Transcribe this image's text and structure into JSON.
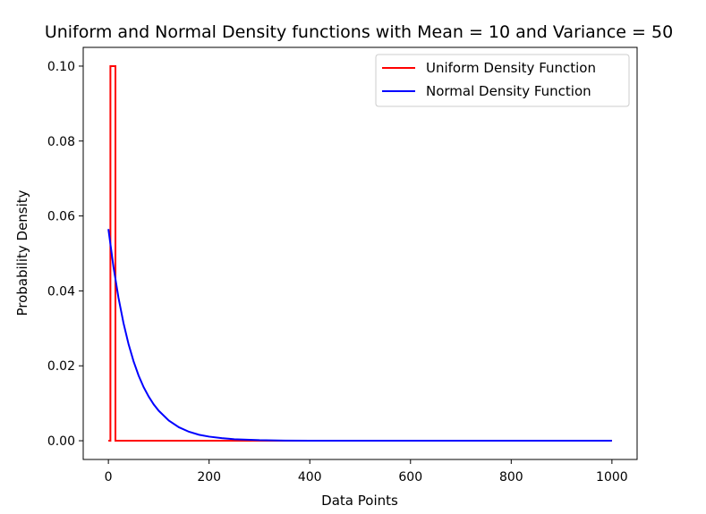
{
  "chart_data": {
    "type": "line",
    "title": "Uniform and Normal Density functions with Mean = 10 and Variance = 50",
    "xlabel": "Data Points",
    "ylabel": "Probability Density",
    "xlim": [
      -50,
      1050
    ],
    "ylim": [
      -0.005,
      0.105
    ],
    "xticks": [
      0,
      200,
      400,
      600,
      800,
      1000
    ],
    "yticks": [
      0.0,
      0.02,
      0.04,
      0.06,
      0.08,
      0.1
    ],
    "xtick_labels": [
      "0",
      "200",
      "400",
      "600",
      "800",
      "1000"
    ],
    "ytick_labels": [
      "0.00",
      "0.02",
      "0.04",
      "0.06",
      "0.08",
      "0.10"
    ],
    "grid": false,
    "legend_position": "top-right",
    "series": [
      {
        "name": "Uniform Density Function",
        "color": "#ff0000",
        "x": [
          0,
          4,
          4,
          14,
          14,
          16,
          16,
          1000
        ],
        "y": [
          0.0,
          0.0,
          0.1,
          0.1,
          0.0,
          0.0,
          0.0,
          0.0
        ]
      },
      {
        "name": "Normal Density Function",
        "color": "#0000ff",
        "x": [
          0,
          10,
          20,
          30,
          40,
          50,
          60,
          70,
          80,
          90,
          100,
          120,
          140,
          160,
          180,
          200,
          225,
          250,
          300,
          350,
          400,
          500,
          600,
          700,
          800,
          900,
          1000
        ],
        "y": [
          0.0565,
          0.0465,
          0.0382,
          0.0314,
          0.0258,
          0.0212,
          0.0174,
          0.0143,
          0.0118,
          0.0097,
          0.008,
          0.0054,
          0.0036,
          0.0024,
          0.0016,
          0.0011,
          0.0007,
          0.0004,
          0.00015,
          5e-05,
          2e-05,
          0.0,
          0.0,
          0.0,
          0.0,
          0.0,
          0.0
        ]
      }
    ]
  }
}
